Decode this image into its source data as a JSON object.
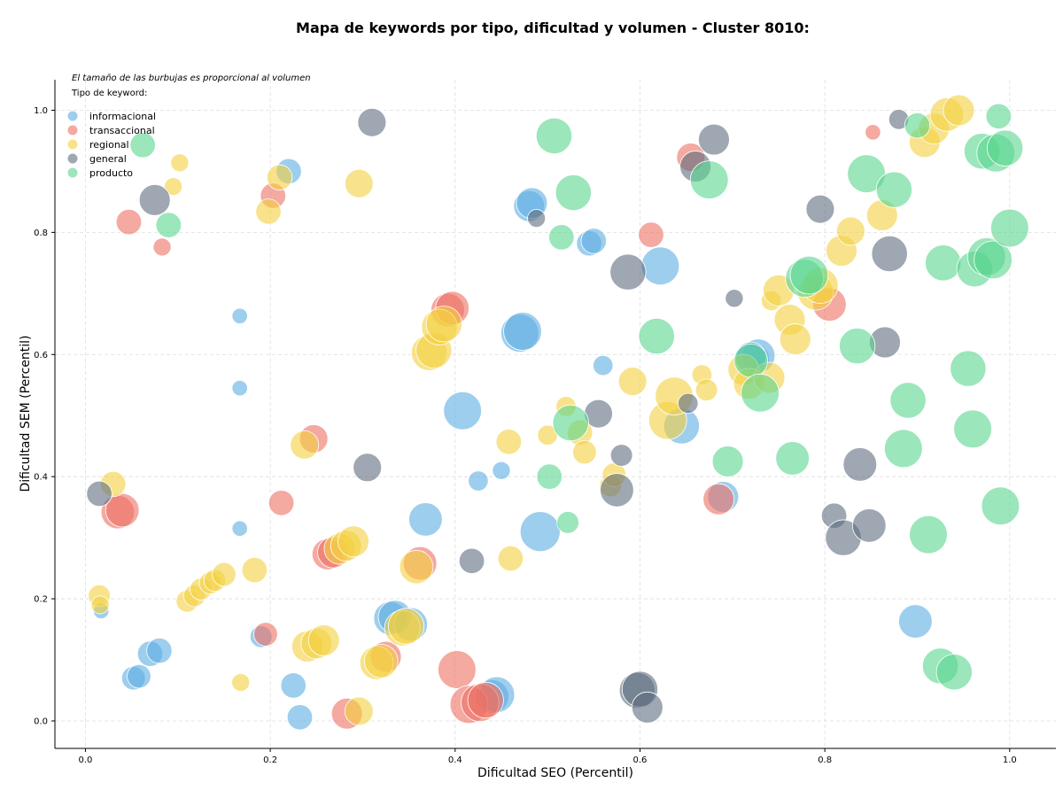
{
  "chart_data": {
    "type": "scatter",
    "title": "Mapa de keywords por tipo, dificultad y volumen - Cluster 8010:",
    "xlabel": "Dificultad SEO (Percentil)",
    "ylabel": "Dificultad SEM (Percentil)",
    "xlim": [
      -0.033,
      1.05
    ],
    "ylim": [
      -0.045,
      1.05
    ],
    "xticks": [
      0.0,
      0.2,
      0.4,
      0.6,
      0.8,
      1.0
    ],
    "yticks": [
      0.0,
      0.2,
      0.4,
      0.6,
      0.8,
      1.0
    ],
    "xtick_labels": [
      "0.0",
      "0.2",
      "0.4",
      "0.6",
      "0.8",
      "1.0"
    ],
    "ytick_labels": [
      "0.0",
      "0.2",
      "0.4",
      "0.6",
      "0.8",
      "1.0"
    ],
    "grid": true,
    "annotation": "El tamaño de las burbujas es proporcional al volumen",
    "legend_title": "Tipo de keyword:",
    "legend_position": "top-left",
    "series": [
      {
        "name": "informacional",
        "color": "#5dade2",
        "points": [
          [
            0.167,
            0.663,
            1.5
          ],
          [
            0.167,
            0.545,
            1.5
          ],
          [
            0.167,
            0.315,
            1.5
          ],
          [
            0.017,
            0.18,
            1.5
          ],
          [
            0.22,
            0.9,
            4
          ],
          [
            0.07,
            0.11,
            4
          ],
          [
            0.08,
            0.115,
            4
          ],
          [
            0.052,
            0.07,
            3.5
          ],
          [
            0.058,
            0.073,
            3.5
          ],
          [
            0.19,
            0.138,
            3
          ],
          [
            0.225,
            0.058,
            4
          ],
          [
            0.232,
            0.006,
            4
          ],
          [
            0.33,
            0.168,
            7
          ],
          [
            0.335,
            0.17,
            7
          ],
          [
            0.352,
            0.158,
            7
          ],
          [
            0.368,
            0.33,
            7
          ],
          [
            0.408,
            0.508,
            9
          ],
          [
            0.425,
            0.393,
            2.5
          ],
          [
            0.45,
            0.41,
            2
          ],
          [
            0.47,
            0.635,
            9
          ],
          [
            0.473,
            0.638,
            9
          ],
          [
            0.48,
            0.843,
            6
          ],
          [
            0.483,
            0.848,
            6
          ],
          [
            0.492,
            0.31,
            10
          ],
          [
            0.44,
            0.04,
            7
          ],
          [
            0.445,
            0.043,
            8
          ],
          [
            0.545,
            0.782,
            4
          ],
          [
            0.55,
            0.786,
            4
          ],
          [
            0.56,
            0.582,
            2.5
          ],
          [
            0.622,
            0.745,
            9
          ],
          [
            0.645,
            0.483,
            8
          ],
          [
            0.69,
            0.367,
            6
          ],
          [
            0.722,
            0.592,
            7
          ],
          [
            0.728,
            0.598,
            7
          ],
          [
            0.72,
            0.595,
            6
          ],
          [
            0.898,
            0.163,
            7
          ]
        ]
      },
      {
        "name": "transaccional",
        "color": "#ec7063",
        "points": [
          [
            0.047,
            0.817,
            4
          ],
          [
            0.083,
            0.776,
            2
          ],
          [
            0.035,
            0.342,
            7
          ],
          [
            0.04,
            0.345,
            7
          ],
          [
            0.203,
            0.86,
            4
          ],
          [
            0.212,
            0.357,
            4
          ],
          [
            0.195,
            0.142,
            3.5
          ],
          [
            0.247,
            0.462,
            5
          ],
          [
            0.262,
            0.273,
            6
          ],
          [
            0.268,
            0.276,
            6
          ],
          [
            0.283,
            0.012,
            6
          ],
          [
            0.325,
            0.105,
            6
          ],
          [
            0.362,
            0.258,
            7
          ],
          [
            0.392,
            0.673,
            7
          ],
          [
            0.397,
            0.676,
            7
          ],
          [
            0.402,
            0.084,
            9
          ],
          [
            0.415,
            0.027,
            9
          ],
          [
            0.427,
            0.03,
            9
          ],
          [
            0.433,
            0.034,
            8
          ],
          [
            0.612,
            0.796,
            4
          ],
          [
            0.655,
            0.923,
            5
          ],
          [
            0.685,
            0.363,
            6
          ],
          [
            0.805,
            0.682,
            7
          ],
          [
            0.852,
            0.964,
            1.5
          ]
        ]
      },
      {
        "name": "regional",
        "color": "#f4d03f",
        "points": [
          [
            0.102,
            0.914,
            2
          ],
          [
            0.095,
            0.875,
            2
          ],
          [
            0.03,
            0.388,
            4
          ],
          [
            0.015,
            0.205,
            3
          ],
          [
            0.016,
            0.19,
            2
          ],
          [
            0.11,
            0.196,
            3
          ],
          [
            0.118,
            0.205,
            3
          ],
          [
            0.125,
            0.216,
            3
          ],
          [
            0.135,
            0.226,
            3
          ],
          [
            0.14,
            0.23,
            3
          ],
          [
            0.15,
            0.24,
            3.5
          ],
          [
            0.168,
            0.063,
            2
          ],
          [
            0.183,
            0.247,
            4
          ],
          [
            0.198,
            0.834,
            4
          ],
          [
            0.21,
            0.89,
            4
          ],
          [
            0.237,
            0.452,
            5
          ],
          [
            0.24,
            0.122,
            6
          ],
          [
            0.25,
            0.127,
            6
          ],
          [
            0.258,
            0.132,
            6
          ],
          [
            0.275,
            0.282,
            6
          ],
          [
            0.282,
            0.287,
            6
          ],
          [
            0.29,
            0.294,
            6
          ],
          [
            0.296,
            0.88,
            5
          ],
          [
            0.296,
            0.016,
            5
          ],
          [
            0.315,
            0.095,
            7
          ],
          [
            0.32,
            0.098,
            7
          ],
          [
            0.343,
            0.152,
            8
          ],
          [
            0.347,
            0.155,
            8
          ],
          [
            0.358,
            0.252,
            7
          ],
          [
            0.372,
            0.603,
            8
          ],
          [
            0.377,
            0.607,
            8
          ],
          [
            0.383,
            0.645,
            8
          ],
          [
            0.388,
            0.65,
            8
          ],
          [
            0.458,
            0.457,
            4
          ],
          [
            0.46,
            0.266,
            4
          ],
          [
            0.5,
            0.468,
            2.5
          ],
          [
            0.52,
            0.515,
            2.5
          ],
          [
            0.535,
            0.472,
            4
          ],
          [
            0.54,
            0.44,
            3.5
          ],
          [
            0.568,
            0.385,
            3
          ],
          [
            0.572,
            0.403,
            3.5
          ],
          [
            0.592,
            0.556,
            5
          ],
          [
            0.63,
            0.492,
            9
          ],
          [
            0.637,
            0.532,
            9
          ],
          [
            0.667,
            0.567,
            2.5
          ],
          [
            0.672,
            0.542,
            3
          ],
          [
            0.712,
            0.575,
            6
          ],
          [
            0.718,
            0.552,
            6
          ],
          [
            0.74,
            0.562,
            6
          ],
          [
            0.742,
            0.688,
            2.5
          ],
          [
            0.75,
            0.705,
            6
          ],
          [
            0.762,
            0.657,
            6
          ],
          [
            0.768,
            0.625,
            6
          ],
          [
            0.79,
            0.702,
            8
          ],
          [
            0.795,
            0.713,
            8
          ],
          [
            0.818,
            0.77,
            6
          ],
          [
            0.828,
            0.802,
            5
          ],
          [
            0.862,
            0.828,
            6
          ],
          [
            0.908,
            0.948,
            6
          ],
          [
            0.918,
            0.97,
            6
          ],
          [
            0.932,
            0.993,
            7
          ],
          [
            0.945,
            1.0,
            6
          ]
        ]
      },
      {
        "name": "general",
        "color": "#5d6d7e",
        "points": [
          [
            0.075,
            0.853,
            6
          ],
          [
            0.015,
            0.372,
            4
          ],
          [
            0.31,
            0.98,
            5
          ],
          [
            0.305,
            0.415,
            5
          ],
          [
            0.418,
            0.262,
            4
          ],
          [
            0.488,
            0.823,
            2
          ],
          [
            0.555,
            0.503,
            5
          ],
          [
            0.58,
            0.435,
            3
          ],
          [
            0.575,
            0.378,
            7
          ],
          [
            0.587,
            0.735,
            8
          ],
          [
            0.597,
            0.05,
            8
          ],
          [
            0.6,
            0.052,
            8
          ],
          [
            0.608,
            0.022,
            6
          ],
          [
            0.652,
            0.52,
            2.5
          ],
          [
            0.66,
            0.908,
            6
          ],
          [
            0.68,
            0.952,
            6
          ],
          [
            0.702,
            0.692,
            2
          ],
          [
            0.795,
            0.838,
            5
          ],
          [
            0.81,
            0.336,
            4
          ],
          [
            0.82,
            0.3,
            8
          ],
          [
            0.838,
            0.42,
            7
          ],
          [
            0.848,
            0.32,
            7
          ],
          [
            0.87,
            0.765,
            8
          ],
          [
            0.865,
            0.62,
            6
          ],
          [
            0.88,
            0.985,
            2.5
          ]
        ]
      },
      {
        "name": "producto",
        "color": "#58d68d",
        "points": [
          [
            0.062,
            0.943,
            4
          ],
          [
            0.09,
            0.812,
            4
          ],
          [
            0.507,
            0.958,
            8
          ],
          [
            0.515,
            0.792,
            4
          ],
          [
            0.502,
            0.4,
            4
          ],
          [
            0.522,
            0.325,
            3
          ],
          [
            0.525,
            0.488,
            8
          ],
          [
            0.528,
            0.865,
            8
          ],
          [
            0.618,
            0.63,
            8
          ],
          [
            0.675,
            0.886,
            9
          ],
          [
            0.695,
            0.425,
            6
          ],
          [
            0.72,
            0.59,
            7
          ],
          [
            0.73,
            0.537,
            9
          ],
          [
            0.765,
            0.43,
            7
          ],
          [
            0.778,
            0.725,
            9
          ],
          [
            0.783,
            0.73,
            9
          ],
          [
            0.835,
            0.614,
            8
          ],
          [
            0.845,
            0.896,
            9
          ],
          [
            0.875,
            0.87,
            8
          ],
          [
            0.89,
            0.525,
            8
          ],
          [
            0.885,
            0.446,
            9
          ],
          [
            0.9,
            0.975,
            4
          ],
          [
            0.912,
            0.305,
            9
          ],
          [
            0.925,
            0.09,
            8
          ],
          [
            0.94,
            0.08,
            8
          ],
          [
            0.928,
            0.75,
            8
          ],
          [
            0.955,
            0.577,
            8
          ],
          [
            0.96,
            0.478,
            9
          ],
          [
            0.962,
            0.74,
            8
          ],
          [
            0.97,
            0.933,
            8
          ],
          [
            0.975,
            0.76,
            9
          ],
          [
            0.982,
            0.755,
            9
          ],
          [
            0.985,
            0.93,
            9
          ],
          [
            0.988,
            0.99,
            4
          ],
          [
            0.99,
            0.352,
            9
          ],
          [
            0.995,
            0.938,
            8
          ],
          [
            1.0,
            0.807,
            9
          ]
        ]
      }
    ]
  }
}
